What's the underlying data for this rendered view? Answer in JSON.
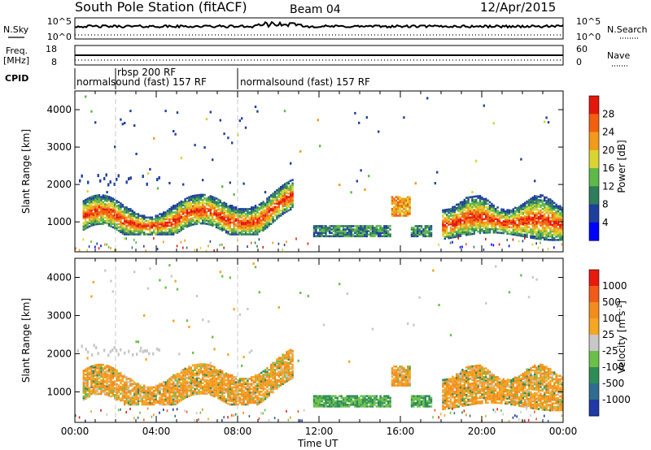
{
  "header": {
    "station": "South Pole Station (fitACF)",
    "beam": "Beam 04",
    "date": "12/Apr/2015"
  },
  "top_panels": {
    "nsky_label": "N.Sky",
    "nsky_ticks": [
      "10^5",
      "10^0"
    ],
    "nsearch_label": "N.Search",
    "nsearch_ticks": [
      "10^5",
      "10^0"
    ],
    "freq_label": [
      "Freq.",
      "[MHz]"
    ],
    "freq_ticks": [
      "18",
      "8"
    ],
    "nave_label": "Nave",
    "nave_ticks": [
      "60",
      "0"
    ],
    "cpid_label": "CPID",
    "cpid_segments": [
      {
        "label": "normalsound (fast) 157 RF",
        "start_h": 0,
        "end_h": 2
      },
      {
        "label": "rbsp 200 RF",
        "start_h": 2,
        "end_h": 8
      },
      {
        "label": "normalsound (fast) 157 RF",
        "start_h": 8,
        "end_h": 24
      }
    ]
  },
  "x_axis": {
    "label": "Time UT",
    "ticks": [
      "00:00",
      "04:00",
      "08:00",
      "12:00",
      "16:00",
      "20:00",
      "00:00"
    ]
  },
  "chart_data": [
    {
      "type": "heatmap",
      "panel": "power",
      "ylabel": "Slant Range [km]",
      "yticks": [
        1000,
        2000,
        3000,
        4000
      ],
      "ylim": [
        200,
        4500
      ],
      "xlim": [
        0,
        24
      ],
      "colorbar": {
        "label": "Power [dB]",
        "ticks": [
          "28",
          "24",
          "20",
          "16",
          "12",
          "8",
          "4"
        ],
        "colors": [
          "#0000ff",
          "#1f3f9e",
          "#2e7d5b",
          "#5fb84a",
          "#d9d431",
          "#f29a1a",
          "#f2600f",
          "#e3170a"
        ]
      }
    },
    {
      "type": "heatmap",
      "panel": "velocity",
      "ylabel": "Slant Range [km]",
      "yticks": [
        1000,
        2000,
        3000,
        4000
      ],
      "ylim": [
        200,
        4500
      ],
      "xlim": [
        0,
        24
      ],
      "colorbar": {
        "label_main": "Velocity [m s",
        "label_sup": "-1",
        "label_end": "]",
        "ticks": [
          "1000",
          "500",
          "100",
          "25",
          "-25",
          "-100",
          "-500",
          "-1000"
        ],
        "colors": [
          "#1f3aa6",
          "#2e6d8f",
          "#2e8c57",
          "#6cc04a",
          "#c8c8c8",
          "#f5a623",
          "#f28c1c",
          "#f25a18",
          "#e81a0f"
        ]
      }
    }
  ]
}
